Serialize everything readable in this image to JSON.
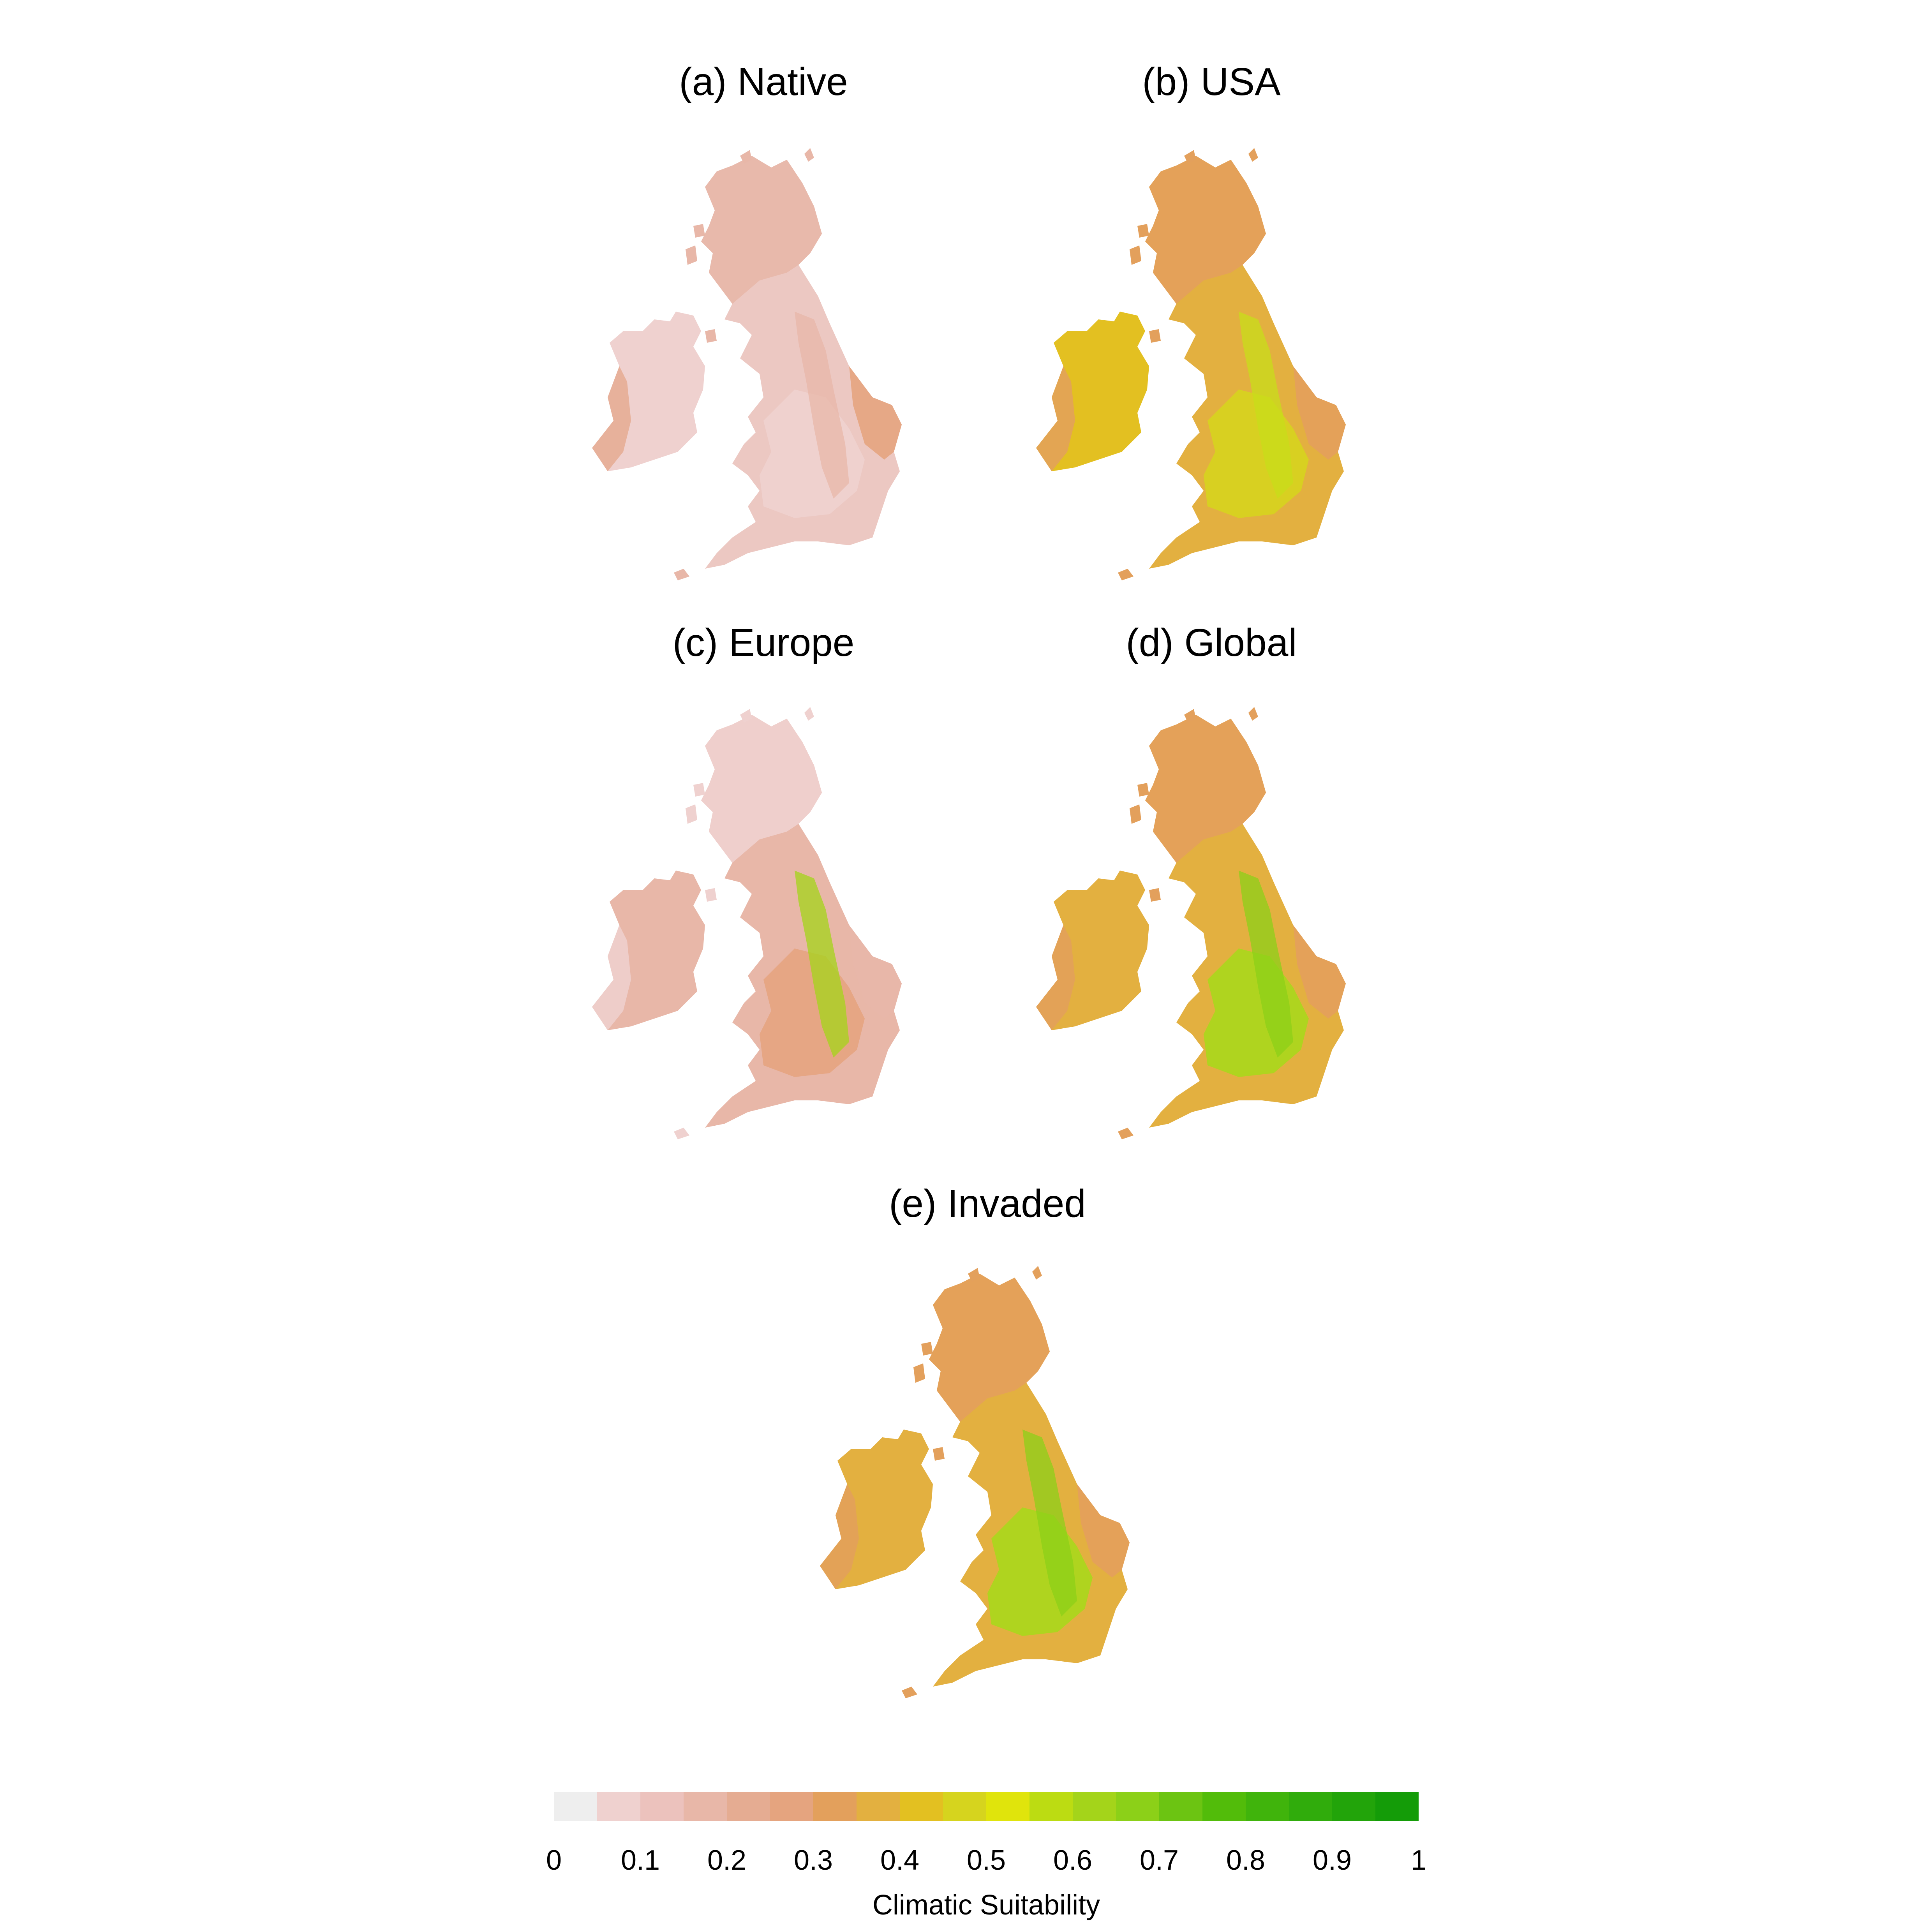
{
  "figure": {
    "panels": [
      {
        "id": "a",
        "title": "(a) Native",
        "ireland": "#efd1cf",
        "ireland_edge": "#e5ac92",
        "britain": "#ecc8c2",
        "scotland": "#e8b7a8",
        "england_core": "#efd1cf",
        "east": "#e5a47f",
        "belt": "#e8b7a8"
      },
      {
        "id": "b",
        "title": "(b) USA",
        "ireland": "#e3c021",
        "ireland_edge": "#e3a05c",
        "britain": "#e3b040",
        "scotland": "#e3a05c",
        "england_core": "#d6d41e",
        "east": "#e3a05c",
        "belt": "#c8de1a"
      },
      {
        "id": "c",
        "title": "(c) Europe",
        "ireland": "#e8b7a8",
        "ireland_edge": "#efd1cf",
        "britain": "#e8b7a8",
        "scotland": "#efd1cf",
        "england_core": "#e5a47f",
        "east": "#e8b7a8",
        "belt": "#a4d41a"
      },
      {
        "id": "d",
        "title": "(d) Global",
        "ireland": "#e3b040",
        "ireland_edge": "#e3a05c",
        "britain": "#e3b040",
        "scotland": "#e3a05c",
        "england_core": "#a8d81c",
        "east": "#e3a05c",
        "belt": "#8cd018"
      },
      {
        "id": "e",
        "title": "(e) Invaded",
        "ireland": "#e3b040",
        "ireland_edge": "#e3a05c",
        "britain": "#e3b040",
        "scotland": "#e3a05c",
        "england_core": "#a8d81c",
        "east": "#e3a05c",
        "belt": "#8cd018"
      }
    ]
  },
  "legend": {
    "title": "Climatic Suitability",
    "ticks": [
      "0",
      "0.1",
      "0.2",
      "0.3",
      "0.4",
      "0.5",
      "0.6",
      "0.7",
      "0.8",
      "0.9",
      "1"
    ],
    "colors": [
      "#eeeeee",
      "#efd1cf",
      "#ecc2bd",
      "#e8b7a8",
      "#e5ac92",
      "#e5a47f",
      "#e3a05c",
      "#e3b040",
      "#e3c021",
      "#d6d41e",
      "#e0e40c",
      "#bcdc12",
      "#a4d41a",
      "#8cd018",
      "#6cc412",
      "#52bc0a",
      "#40b40c",
      "#30ac0c",
      "#22a40a",
      "#149c08"
    ]
  }
}
